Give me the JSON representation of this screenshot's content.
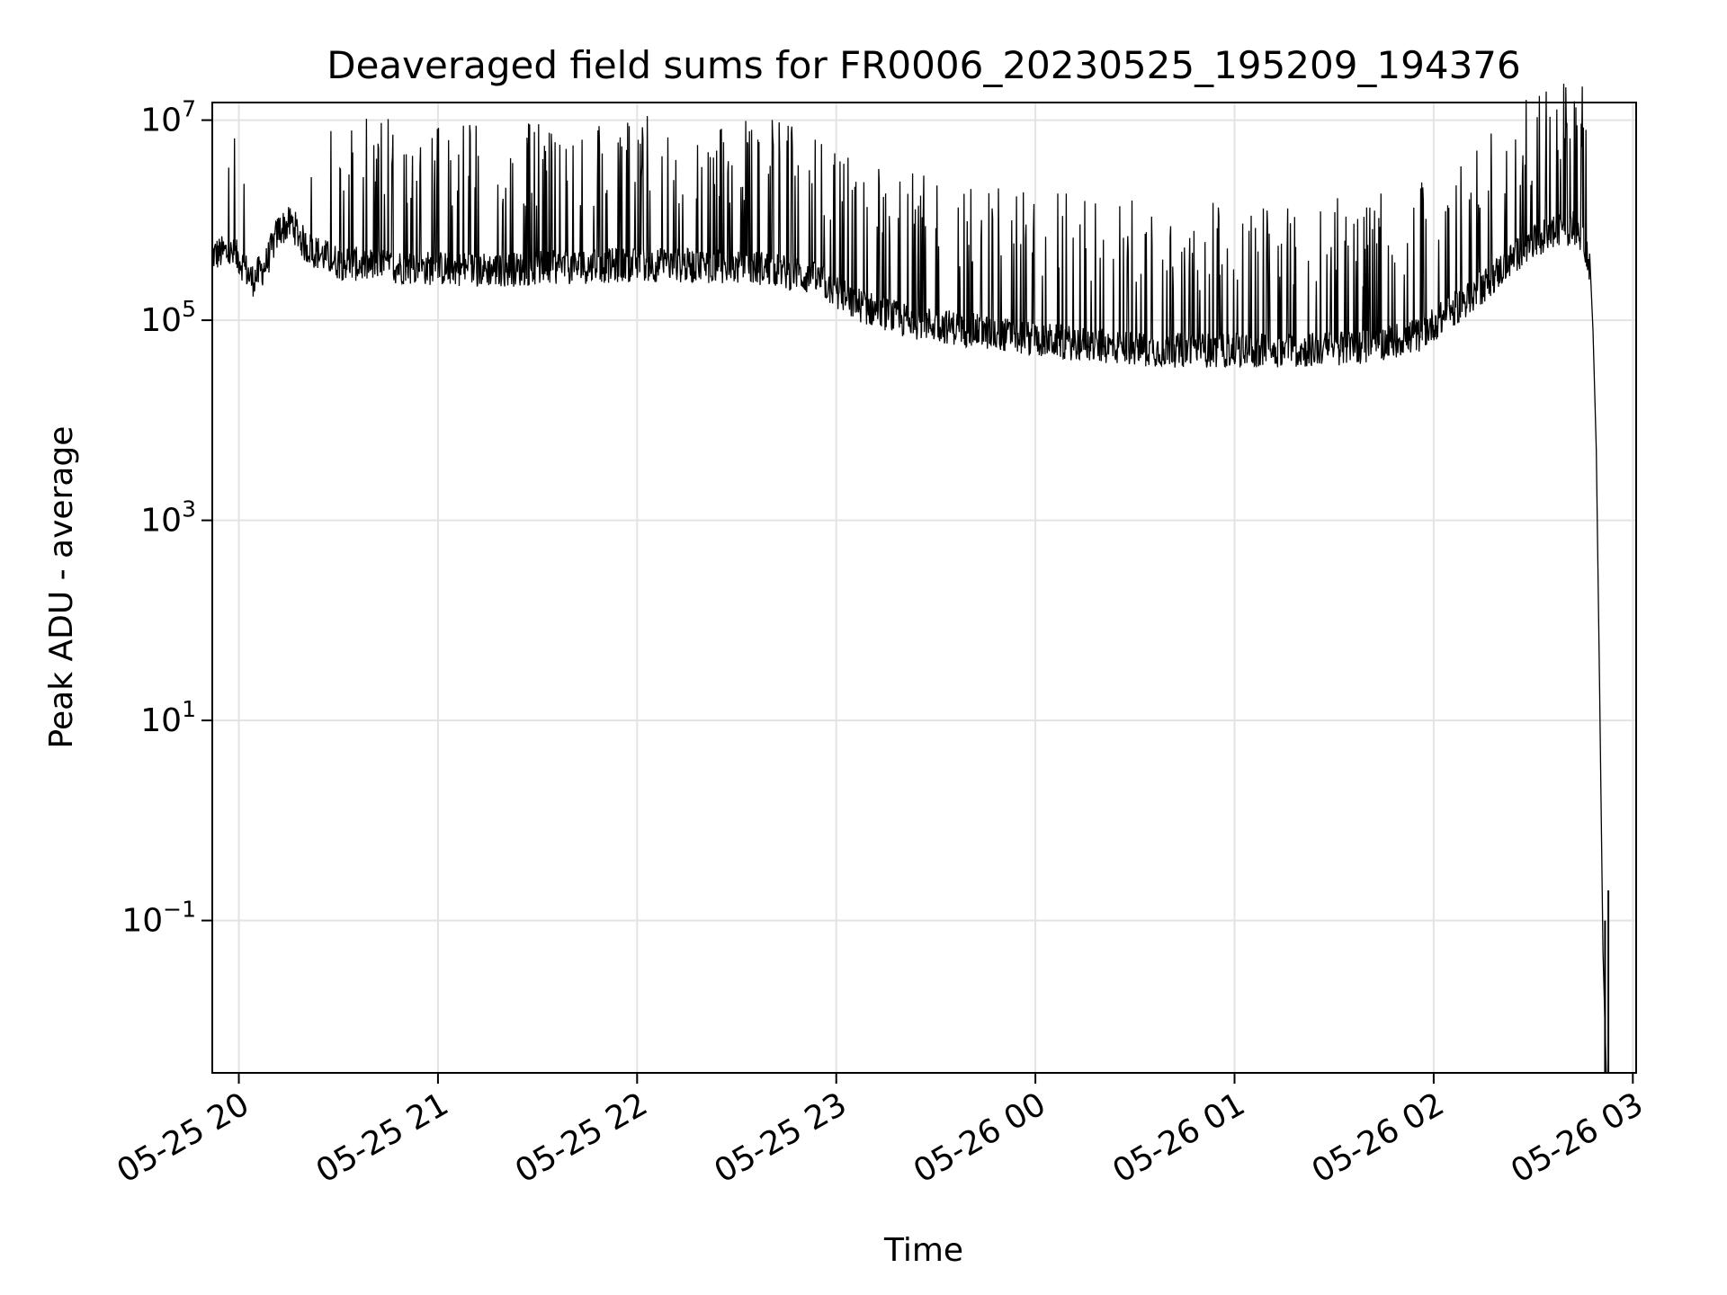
{
  "chart_data": {
    "type": "line",
    "title": "Deaveraged field sums for FR0006_20230525_195209_194376",
    "xlabel": "Time",
    "ylabel": "Peak ADU - average",
    "yscale": "log",
    "grid": true,
    "xlim": [
      "2023-05-25 19:52",
      "2023-05-26 03:01"
    ],
    "ylim": [
      0.003,
      15000000
    ],
    "x_ticks": [
      {
        "t": "2023-05-25 20:00",
        "label": "05-25 20"
      },
      {
        "t": "2023-05-25 21:00",
        "label": "05-25 21"
      },
      {
        "t": "2023-05-25 22:00",
        "label": "05-25 22"
      },
      {
        "t": "2023-05-25 23:00",
        "label": "05-25 23"
      },
      {
        "t": "2023-05-26 00:00",
        "label": "05-26 00"
      },
      {
        "t": "2023-05-26 01:00",
        "label": "05-26 01"
      },
      {
        "t": "2023-05-26 02:00",
        "label": "05-26 02"
      },
      {
        "t": "2023-05-26 03:00",
        "label": "05-26 03"
      }
    ],
    "y_ticks": [
      {
        "value": 10000000,
        "base": "10",
        "exp": "7"
      },
      {
        "value": 100000,
        "base": "10",
        "exp": "5"
      },
      {
        "value": 1000,
        "base": "10",
        "exp": "3"
      },
      {
        "value": 10,
        "base": "10",
        "exp": "1"
      },
      {
        "value": 0.1,
        "base": "10",
        "exp": "−1"
      }
    ],
    "series": [
      {
        "color": "#000000",
        "points": [
          [
            "2023-05-25 19:52",
            450000
          ],
          [
            "2023-05-25 19:56",
            480000
          ],
          [
            "2023-05-25 20:00",
            420000
          ],
          [
            "2023-05-25 20:04",
            250000
          ],
          [
            "2023-05-25 20:08",
            350000
          ],
          [
            "2023-05-25 20:12",
            800000
          ],
          [
            "2023-05-25 20:16",
            950000
          ],
          [
            "2023-05-25 20:20",
            550000
          ],
          [
            "2023-05-25 20:25",
            450000
          ],
          [
            "2023-05-25 20:30",
            380000
          ],
          [
            "2023-05-25 20:40",
            350000
          ],
          [
            "2023-05-25 21:00",
            330000
          ],
          [
            "2023-05-25 21:20",
            320000
          ],
          [
            "2023-05-25 21:40",
            340000
          ],
          [
            "2023-05-25 22:00",
            360000
          ],
          [
            "2023-05-25 22:20",
            350000
          ],
          [
            "2023-05-25 22:40",
            330000
          ],
          [
            "2023-05-25 22:55",
            250000
          ],
          [
            "2023-05-25 23:05",
            150000
          ],
          [
            "2023-05-25 23:20",
            100000
          ],
          [
            "2023-05-25 23:40",
            80000
          ],
          [
            "2023-05-26 00:00",
            65000
          ],
          [
            "2023-05-26 00:20",
            55000
          ],
          [
            "2023-05-26 00:40",
            50000
          ],
          [
            "2023-05-26 01:00",
            50000
          ],
          [
            "2023-05-26 01:20",
            50000
          ],
          [
            "2023-05-26 01:40",
            55000
          ],
          [
            "2023-05-26 01:55",
            70000
          ],
          [
            "2023-05-26 02:05",
            120000
          ],
          [
            "2023-05-26 02:15",
            220000
          ],
          [
            "2023-05-26 02:25",
            450000
          ],
          [
            "2023-05-26 02:35",
            750000
          ],
          [
            "2023-05-26 02:42",
            850000
          ],
          [
            "2023-05-26 02:45",
            700000
          ],
          [
            "2023-05-26 02:47",
            350000
          ],
          [
            "2023-05-26 02:48",
            80000
          ],
          [
            "2023-05-26 02:49",
            5000
          ],
          [
            "2023-05-26 02:50",
            20
          ],
          [
            "2023-05-26 02:51",
            0.05
          ],
          [
            "2023-05-26 02:52",
            0.003
          ]
        ]
      }
    ]
  }
}
